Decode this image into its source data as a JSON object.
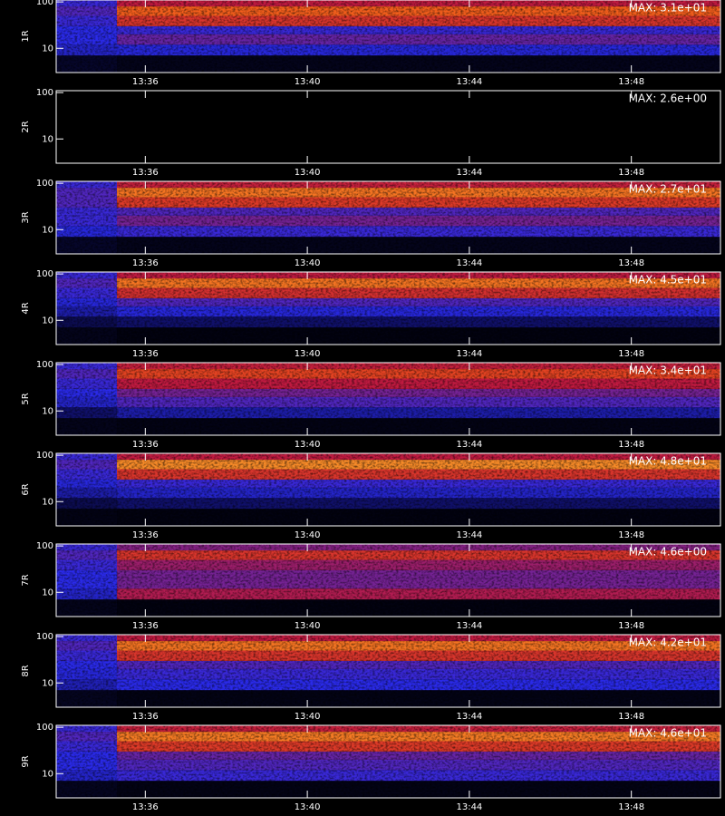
{
  "colormap": [
    "#000000",
    "#10106a",
    "#2a2ae8",
    "#c01a40",
    "#f05018",
    "#ffe040"
  ],
  "chart_data": [
    {
      "type": "heatmap",
      "title": "1R",
      "annotation": "MAX: 3.1e+01",
      "xlim": [
        33.8,
        50.2
      ],
      "xticks": [
        {
          "value": 36,
          "label": "13:36"
        },
        {
          "value": 40,
          "label": "13:40"
        },
        {
          "value": 44,
          "label": "13:44"
        },
        {
          "value": 48,
          "label": "13:48"
        }
      ],
      "ylim": [
        3,
        110
      ],
      "yticks": [
        10,
        100
      ],
      "log_y": true,
      "x_edges": [
        33.8,
        35.3,
        50.2
      ],
      "y_edges": [
        3,
        7,
        12,
        20,
        30,
        50,
        80,
        110
      ],
      "intensity": [
        [
          0.08,
          0.35,
          0.4,
          0.4,
          0.42,
          0.45,
          0.42
        ],
        [
          0.05,
          0.38,
          0.48,
          0.42,
          0.7,
          0.82,
          0.6
        ]
      ]
    },
    {
      "type": "heatmap",
      "title": "2R",
      "annotation": "MAX: 2.6e+00",
      "xlim": [
        33.8,
        50.2
      ],
      "xticks": [
        {
          "value": 36,
          "label": "13:36"
        },
        {
          "value": 40,
          "label": "13:40"
        },
        {
          "value": 44,
          "label": "13:44"
        },
        {
          "value": 48,
          "label": "13:48"
        }
      ],
      "ylim": [
        3,
        110
      ],
      "yticks": [
        10,
        100
      ],
      "log_y": true,
      "x_edges": [
        33.8,
        35.3,
        50.2
      ],
      "y_edges": [
        3,
        7,
        12,
        20,
        30,
        50,
        80,
        110
      ],
      "intensity": [
        [
          0,
          0,
          0,
          0,
          0,
          0,
          0
        ],
        [
          0,
          0,
          0,
          0,
          0,
          0,
          0
        ]
      ]
    },
    {
      "type": "heatmap",
      "title": "3R",
      "annotation": "MAX: 2.7e+01",
      "xlim": [
        33.8,
        50.2
      ],
      "xticks": [
        {
          "value": 36,
          "label": "13:36"
        },
        {
          "value": 40,
          "label": "13:40"
        },
        {
          "value": 44,
          "label": "13:44"
        },
        {
          "value": 48,
          "label": "13:48"
        }
      ],
      "ylim": [
        3,
        110
      ],
      "yticks": [
        10,
        100
      ],
      "log_y": true,
      "x_edges": [
        33.8,
        35.3,
        50.2
      ],
      "y_edges": [
        3,
        7,
        12,
        20,
        30,
        50,
        80,
        110
      ],
      "intensity": [
        [
          0.08,
          0.38,
          0.42,
          0.42,
          0.45,
          0.45,
          0.42
        ],
        [
          0.05,
          0.42,
          0.5,
          0.45,
          0.72,
          0.85,
          0.62
        ]
      ]
    },
    {
      "type": "heatmap",
      "title": "4R",
      "annotation": "MAX: 4.5e+01",
      "xlim": [
        33.8,
        50.2
      ],
      "xticks": [
        {
          "value": 36,
          "label": "13:36"
        },
        {
          "value": 40,
          "label": "13:40"
        },
        {
          "value": 44,
          "label": "13:44"
        },
        {
          "value": 48,
          "label": "13:48"
        }
      ],
      "ylim": [
        3,
        110
      ],
      "yticks": [
        10,
        100
      ],
      "log_y": true,
      "x_edges": [
        33.8,
        35.3,
        50.2
      ],
      "y_edges": [
        3,
        7,
        12,
        20,
        30,
        50,
        80,
        110
      ],
      "intensity": [
        [
          0.05,
          0.15,
          0.3,
          0.38,
          0.42,
          0.45,
          0.42
        ],
        [
          0.03,
          0.2,
          0.38,
          0.45,
          0.68,
          0.85,
          0.6
        ]
      ]
    },
    {
      "type": "heatmap",
      "title": "5R",
      "annotation": "MAX: 3.4e+01",
      "xlim": [
        33.8,
        50.2
      ],
      "xticks": [
        {
          "value": 36,
          "label": "13:36"
        },
        {
          "value": 40,
          "label": "13:40"
        },
        {
          "value": 44,
          "label": "13:44"
        },
        {
          "value": 48,
          "label": "13:48"
        }
      ],
      "ylim": [
        3,
        110
      ],
      "yticks": [
        10,
        100
      ],
      "log_y": true,
      "x_edges": [
        33.8,
        35.3,
        50.2
      ],
      "y_edges": [
        3,
        7,
        12,
        20,
        30,
        50,
        80,
        110
      ],
      "intensity": [
        [
          0.05,
          0.2,
          0.35,
          0.4,
          0.42,
          0.45,
          0.42
        ],
        [
          0.04,
          0.3,
          0.45,
          0.5,
          0.6,
          0.75,
          0.62
        ]
      ]
    },
    {
      "type": "heatmap",
      "title": "6R",
      "annotation": "MAX: 4.8e+01",
      "xlim": [
        33.8,
        50.2
      ],
      "xticks": [
        {
          "value": 36,
          "label": "13:36"
        },
        {
          "value": 40,
          "label": "13:40"
        },
        {
          "value": 44,
          "label": "13:44"
        },
        {
          "value": 48,
          "label": "13:48"
        }
      ],
      "ylim": [
        3,
        110
      ],
      "yticks": [
        10,
        100
      ],
      "log_y": true,
      "x_edges": [
        33.8,
        35.3,
        50.2
      ],
      "y_edges": [
        3,
        7,
        12,
        20,
        30,
        50,
        80,
        110
      ],
      "intensity": [
        [
          0.04,
          0.15,
          0.3,
          0.38,
          0.42,
          0.45,
          0.42
        ],
        [
          0.03,
          0.2,
          0.35,
          0.42,
          0.7,
          0.88,
          0.6
        ]
      ]
    },
    {
      "type": "heatmap",
      "title": "7R",
      "annotation": "MAX: 4.6e+00",
      "xlim": [
        33.8,
        50.2
      ],
      "xticks": [
        {
          "value": 36,
          "label": "13:36"
        },
        {
          "value": 40,
          "label": "13:40"
        },
        {
          "value": 44,
          "label": "13:44"
        },
        {
          "value": 48,
          "label": "13:48"
        }
      ],
      "ylim": [
        3,
        110
      ],
      "yticks": [
        10,
        100
      ],
      "log_y": true,
      "x_edges": [
        33.8,
        35.3,
        50.2
      ],
      "y_edges": [
        3,
        7,
        12,
        20,
        30,
        50,
        80,
        110
      ],
      "intensity": [
        [
          0.05,
          0.35,
          0.4,
          0.4,
          0.42,
          0.45,
          0.42
        ],
        [
          0.03,
          0.58,
          0.5,
          0.5,
          0.55,
          0.7,
          0.52
        ]
      ]
    },
    {
      "type": "heatmap",
      "title": "8R",
      "annotation": "MAX: 4.2e+01",
      "xlim": [
        33.8,
        50.2
      ],
      "xticks": [
        {
          "value": 36,
          "label": "13:36"
        },
        {
          "value": 40,
          "label": "13:40"
        },
        {
          "value": 44,
          "label": "13:44"
        },
        {
          "value": 48,
          "label": "13:48"
        }
      ],
      "ylim": [
        3,
        110
      ],
      "yticks": [
        10,
        100
      ],
      "log_y": true,
      "x_edges": [
        33.8,
        35.3,
        50.2
      ],
      "y_edges": [
        3,
        7,
        12,
        20,
        30,
        50,
        80,
        110
      ],
      "intensity": [
        [
          0.06,
          0.32,
          0.38,
          0.4,
          0.42,
          0.45,
          0.42
        ],
        [
          0.04,
          0.4,
          0.42,
          0.45,
          0.7,
          0.85,
          0.6
        ]
      ]
    },
    {
      "type": "heatmap",
      "title": "9R",
      "annotation": "MAX: 4.6e+01",
      "xlim": [
        33.8,
        50.2
      ],
      "xticks": [
        {
          "value": 36,
          "label": "13:36"
        },
        {
          "value": 40,
          "label": "13:40"
        },
        {
          "value": 44,
          "label": "13:44"
        },
        {
          "value": 48,
          "label": "13:48"
        }
      ],
      "ylim": [
        3,
        110
      ],
      "yticks": [
        10,
        100
      ],
      "log_y": true,
      "x_edges": [
        33.8,
        35.3,
        50.2
      ],
      "y_edges": [
        3,
        7,
        12,
        20,
        30,
        50,
        80,
        110
      ],
      "intensity": [
        [
          0.06,
          0.35,
          0.4,
          0.4,
          0.42,
          0.45,
          0.42
        ],
        [
          0.04,
          0.42,
          0.45,
          0.48,
          0.72,
          0.86,
          0.62
        ]
      ]
    }
  ]
}
